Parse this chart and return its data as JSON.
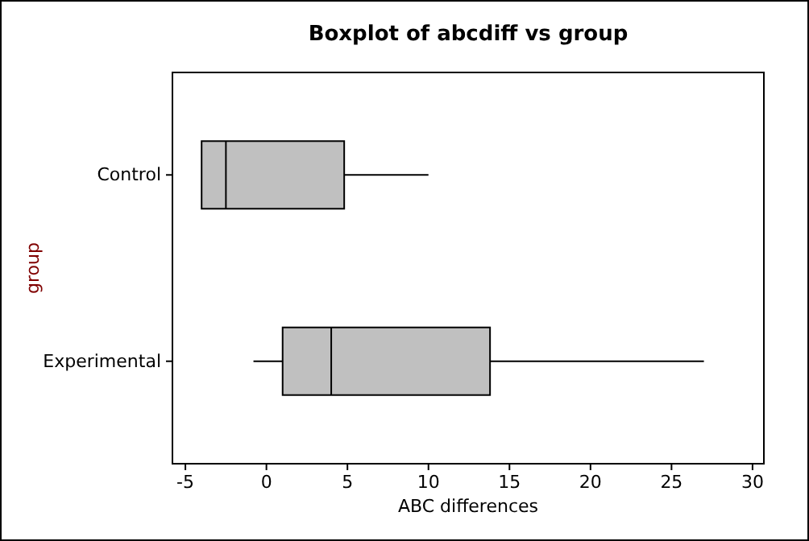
{
  "chart_data": {
    "type": "box",
    "title": "Boxplot of abcdiff vs group",
    "xlabel": "ABC differences",
    "ylabel": "group",
    "orientation": "horizontal",
    "categories": [
      "Control",
      "Experimental"
    ],
    "boxes": [
      {
        "low": -4,
        "q1": -4,
        "median": -2.5,
        "q3": 4.8,
        "high": 10
      },
      {
        "low": -0.8,
        "q1": 1,
        "median": 4,
        "q3": 13.8,
        "high": 27
      }
    ],
    "color": "#c0c0c0",
    "xlim": [
      -5.8,
      30.7
    ],
    "xticks": [
      -5,
      0,
      5,
      10,
      15,
      20,
      25,
      30
    ],
    "grid": false
  }
}
